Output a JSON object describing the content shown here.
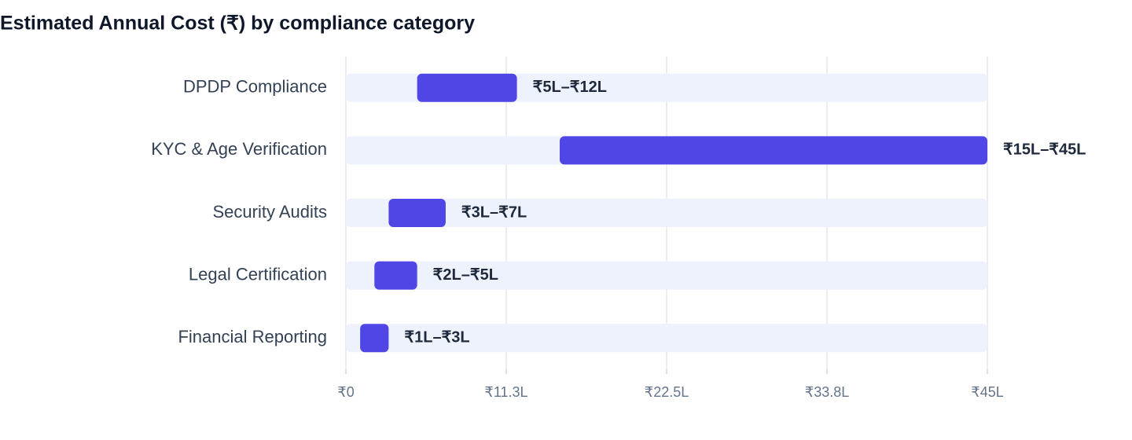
{
  "chart_data": {
    "type": "range-bar",
    "title": "Estimated Annual Cost (₹) by compliance category",
    "categories": [
      "DPDP Compliance",
      "KYC & Age Verification",
      "Security Audits",
      "Legal Certification",
      "Financial Reporting"
    ],
    "low": [
      5,
      15,
      3,
      2,
      1
    ],
    "high": [
      12,
      45,
      7,
      5,
      3
    ],
    "value_labels": [
      "₹5L–₹12L",
      "₹15L–₹45L",
      "₹3L–₹7L",
      "₹2L–₹5L",
      "₹1L–₹3L"
    ],
    "color": "#4f46e5",
    "track_color": "#eef2fd",
    "xlim": [
      0,
      45
    ],
    "xticks": [
      {
        "value": 0,
        "label": "₹0"
      },
      {
        "value": 11.25,
        "label": "₹11.3L"
      },
      {
        "value": 22.5,
        "label": "₹22.5L"
      },
      {
        "value": 33.75,
        "label": "₹33.8L"
      },
      {
        "value": 45,
        "label": "₹45L"
      }
    ],
    "grid": true
  }
}
